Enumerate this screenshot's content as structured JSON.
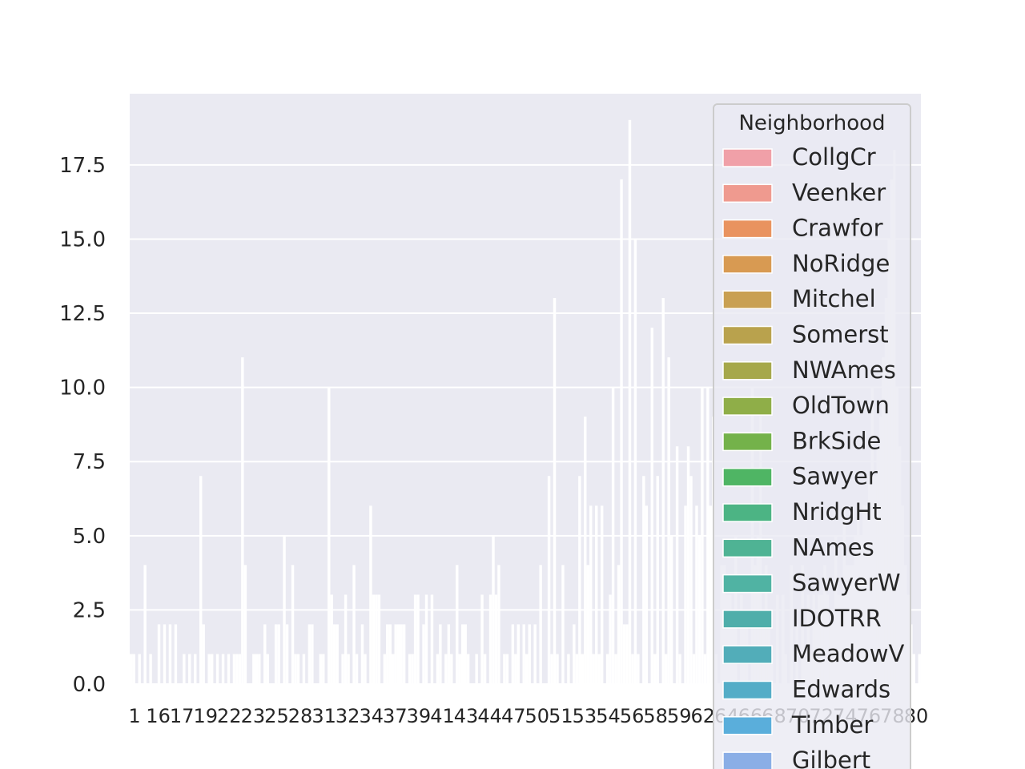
{
  "chart_data": {
    "type": "bar",
    "title": "",
    "xlabel": "",
    "ylabel": "",
    "ylim": [
      0,
      19.9
    ],
    "y_ticks": [
      "0.0",
      "2.5",
      "5.0",
      "7.5",
      "10.0",
      "12.5",
      "15.0",
      "17.5"
    ],
    "y_tick_values": [
      0,
      2.5,
      5,
      7.5,
      10,
      12.5,
      15,
      17.5
    ],
    "grid": true,
    "background": "#eaeaf2",
    "bar_edge_color": "#ffffff",
    "bar_fill_color": "#ffffff",
    "values": [
      1,
      1,
      0,
      1,
      0,
      4,
      0,
      1,
      0,
      0,
      2,
      0,
      2,
      0,
      2,
      0,
      2,
      0,
      0,
      1,
      0,
      1,
      0,
      1,
      0,
      7,
      2,
      0,
      1,
      1,
      0,
      1,
      0,
      1,
      0,
      1,
      0,
      1,
      1,
      1,
      11,
      4,
      0,
      0,
      1,
      1,
      1,
      0,
      2,
      1,
      0,
      0,
      2,
      2,
      0,
      5,
      2,
      0,
      4,
      1,
      1,
      0,
      1,
      0,
      2,
      2,
      0,
      0,
      1,
      1,
      0,
      10,
      3,
      2,
      2,
      0,
      1,
      3,
      1,
      0,
      4,
      1,
      0,
      2,
      1,
      0,
      6,
      3,
      3,
      3,
      0,
      1,
      2,
      2,
      1,
      2,
      2,
      2,
      2,
      0,
      1,
      1,
      3,
      3,
      0,
      2,
      3,
      0,
      3,
      0,
      1,
      2,
      0,
      1,
      2,
      1,
      0,
      4,
      1,
      2,
      2,
      1,
      0,
      0,
      1,
      0,
      3,
      1,
      0,
      3,
      5,
      3,
      4,
      0,
      1,
      1,
      0,
      2,
      1,
      2,
      0,
      2,
      1,
      2,
      0,
      2,
      0,
      4,
      0,
      0,
      7,
      1,
      13,
      1,
      0,
      4,
      0,
      1,
      0,
      2,
      1,
      7,
      1,
      9,
      4,
      6,
      1,
      6,
      1,
      6,
      0,
      1,
      3,
      10,
      1,
      4,
      17,
      2,
      2,
      19,
      1,
      15,
      1,
      0,
      7,
      6,
      0,
      12,
      1,
      7,
      0,
      13,
      1,
      11,
      5,
      0,
      8,
      1,
      0,
      6,
      8,
      7,
      1,
      6,
      5,
      10,
      1,
      10,
      6,
      9,
      1,
      0,
      4,
      4,
      3,
      3,
      2,
      5,
      0,
      3,
      2,
      2,
      0,
      10,
      4,
      5,
      9,
      2,
      4,
      2,
      1,
      0,
      3,
      0,
      3,
      1,
      0,
      4,
      0,
      2,
      0,
      4,
      1,
      3,
      1,
      3,
      2,
      3,
      3,
      4,
      3,
      2,
      2,
      5,
      3,
      3,
      6,
      4,
      4,
      4,
      5,
      6,
      5,
      6,
      6,
      7,
      10,
      7,
      8,
      9,
      11,
      13,
      15,
      17,
      18,
      10,
      8,
      6,
      4,
      3,
      2,
      1,
      0,
      1
    ],
    "x_tick_labels_note": "",
    "x_tick_labels": [
      "1",
      "16",
      "17",
      "19",
      "22",
      "23",
      "25",
      "28",
      "31",
      "32",
      "34",
      "37",
      "39",
      "41",
      "43",
      "44",
      "47",
      "50",
      "51",
      "53",
      "54",
      "56",
      "58",
      "59",
      "62",
      "64",
      "66",
      "68",
      "70",
      "72",
      "74",
      "76",
      "78",
      "80"
    ],
    "legend": {
      "title": "Neighborhood",
      "placement": "upper-right",
      "entries": [
        {
          "name": "CollgCr",
          "color": "#f0a0a8"
        },
        {
          "name": "Veenker",
          "color": "#ef9a8f"
        },
        {
          "name": "Crawfor",
          "color": "#e9935f"
        },
        {
          "name": "NoRidge",
          "color": "#d89a52"
        },
        {
          "name": "Mitchel",
          "color": "#c9a052"
        },
        {
          "name": "Somerst",
          "color": "#b9a24d"
        },
        {
          "name": "NWAmes",
          "color": "#a6a84b"
        },
        {
          "name": "OldTown",
          "color": "#8fae48"
        },
        {
          "name": "BrkSide",
          "color": "#74b24a"
        },
        {
          "name": "Sawyer",
          "color": "#4fb564"
        },
        {
          "name": "NridgHt",
          "color": "#4cb484"
        },
        {
          "name": "NAmes",
          "color": "#4fb394"
        },
        {
          "name": "SawyerW",
          "color": "#50b3a3"
        },
        {
          "name": "IDOTRR",
          "color": "#4faeaa"
        },
        {
          "name": "MeadowV",
          "color": "#52adb9"
        },
        {
          "name": "Edwards",
          "color": "#54adc7"
        },
        {
          "name": "Timber",
          "color": "#5aaedb"
        },
        {
          "name": "Gilbert",
          "color": "#8aaee6"
        }
      ]
    }
  }
}
